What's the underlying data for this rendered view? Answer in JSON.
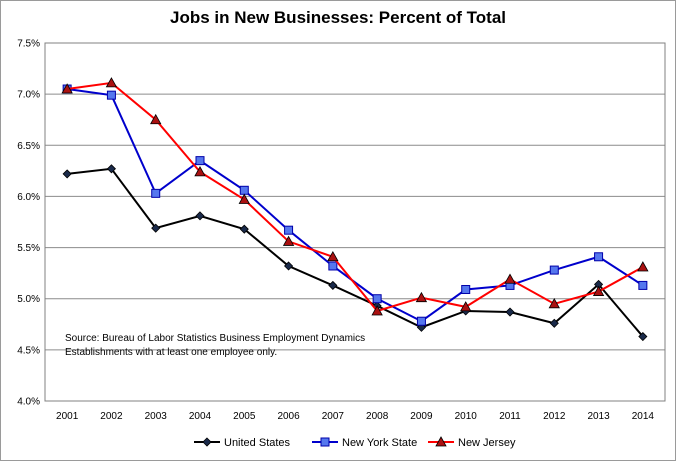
{
  "chart_data": {
    "type": "line",
    "title": "Jobs in New Businesses:  Percent of Total",
    "xlabel": "",
    "ylabel": "",
    "categories": [
      "2001",
      "2002",
      "2003",
      "2004",
      "2005",
      "2006",
      "2007",
      "2008",
      "2009",
      "2010",
      "2011",
      "2012",
      "2013",
      "2014"
    ],
    "y_ticks": [
      "4.0%",
      "4.5%",
      "5.0%",
      "5.5%",
      "6.0%",
      "6.5%",
      "7.0%",
      "7.5%"
    ],
    "ylim": [
      4.0,
      7.5
    ],
    "grid": "horizontal",
    "legend_position": "bottom",
    "series": [
      {
        "name": "United States",
        "color": "#000000",
        "marker": "diamond",
        "values": [
          6.22,
          6.27,
          5.69,
          5.81,
          5.68,
          5.32,
          5.13,
          4.93,
          4.72,
          4.88,
          4.87,
          4.76,
          5.14,
          4.63
        ]
      },
      {
        "name": "New York State",
        "color": "#0000cc",
        "marker": "square",
        "values": [
          7.05,
          6.99,
          6.03,
          6.35,
          6.06,
          5.67,
          5.32,
          5.0,
          4.78,
          5.09,
          5.13,
          5.28,
          5.41,
          5.13
        ]
      },
      {
        "name": "New Jersey",
        "color": "#ff0000",
        "marker": "triangle",
        "values": [
          7.05,
          7.11,
          6.75,
          6.24,
          5.97,
          5.56,
          5.41,
          4.88,
          5.01,
          4.92,
          5.19,
          4.95,
          5.07,
          5.31
        ]
      }
    ],
    "annotation": {
      "line1": "Source:  Bureau of Labor Statistics Business Employment Dynamics",
      "line2": "Establishments with at least one employee only."
    }
  }
}
